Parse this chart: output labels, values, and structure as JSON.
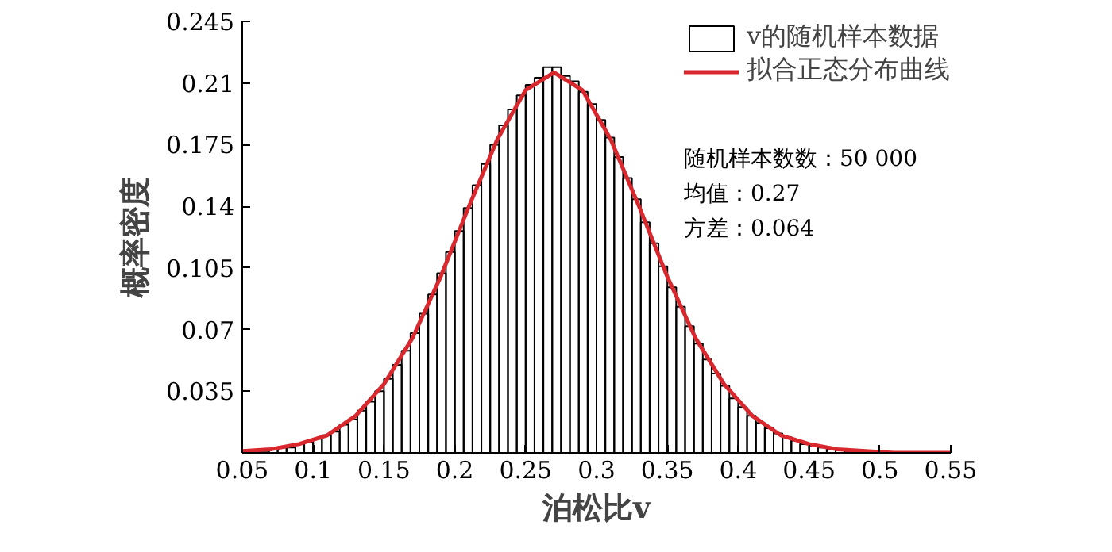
{
  "chart_data": {
    "type": "histogram",
    "xlabel": "泊松比v",
    "ylabel": "概率密度",
    "series": [
      {
        "name": "v的随机样本数据",
        "color": "#000000",
        "bins": [
          0.05,
          0.05625,
          0.0625,
          0.06875,
          0.075,
          0.08125,
          0.0875,
          0.09375,
          0.1,
          0.10625,
          0.1125,
          0.11875,
          0.125,
          0.13125,
          0.1375,
          0.14375,
          0.15,
          0.15625,
          0.1625,
          0.16875,
          0.175,
          0.18125,
          0.1875,
          0.19375,
          0.2,
          0.20625,
          0.2125,
          0.21875,
          0.225,
          0.23125,
          0.2375,
          0.24375,
          0.25,
          0.25625,
          0.2625,
          0.26875,
          0.275,
          0.28125,
          0.2875,
          0.29375,
          0.3,
          0.30625,
          0.3125,
          0.31875,
          0.325,
          0.33125,
          0.3375,
          0.34375,
          0.35,
          0.35625,
          0.3625,
          0.36875,
          0.375,
          0.38125,
          0.3875,
          0.39375,
          0.4,
          0.40625,
          0.4125,
          0.41875,
          0.425,
          0.43125,
          0.4375,
          0.44375,
          0.45,
          0.45625,
          0.4625,
          0.46875,
          0.475,
          0.48125,
          0.4875,
          0.49375,
          0.5,
          0.50625,
          0.5125,
          0.51875,
          0.525,
          0.53125,
          0.5375,
          0.54375,
          0.55
        ],
        "values": [
          0.001,
          0.001,
          0.001,
          0.002,
          0.003,
          0.003,
          0.005,
          0.006,
          0.008,
          0.01,
          0.012,
          0.016,
          0.019,
          0.024,
          0.029,
          0.035,
          0.042,
          0.05,
          0.058,
          0.068,
          0.079,
          0.09,
          0.102,
          0.114,
          0.126,
          0.139,
          0.152,
          0.164,
          0.175,
          0.186,
          0.195,
          0.203,
          0.209,
          0.213,
          0.219,
          0.219,
          0.214,
          0.211,
          0.205,
          0.198,
          0.189,
          0.179,
          0.168,
          0.156,
          0.144,
          0.131,
          0.119,
          0.106,
          0.094,
          0.083,
          0.072,
          0.062,
          0.053,
          0.045,
          0.038,
          0.031,
          0.026,
          0.021,
          0.017,
          0.014,
          0.011,
          0.009,
          0.007,
          0.005,
          0.004,
          0.003,
          0.002,
          0.002,
          0.001,
          0.001,
          0.001,
          0.0,
          0.0,
          0.0,
          0.0,
          0.0,
          0.0,
          0.0,
          0.0,
          0.0
        ]
      },
      {
        "name": "拟合正态分布曲线",
        "type": "line",
        "color": "#d9272e",
        "x": [
          0.05,
          0.07,
          0.09,
          0.11,
          0.13,
          0.15,
          0.17,
          0.19,
          0.21,
          0.23,
          0.25,
          0.27,
          0.29,
          0.31,
          0.33,
          0.35,
          0.37,
          0.39,
          0.41,
          0.43,
          0.45,
          0.47,
          0.49,
          0.51,
          0.53,
          0.55
        ],
        "values": [
          0.001,
          0.002,
          0.005,
          0.01,
          0.021,
          0.039,
          0.065,
          0.1,
          0.14,
          0.178,
          0.206,
          0.216,
          0.206,
          0.178,
          0.14,
          0.1,
          0.065,
          0.039,
          0.021,
          0.01,
          0.005,
          0.002,
          0.001,
          0.0,
          0.0,
          0.0
        ]
      }
    ],
    "xlim": [
      0.05,
      0.55
    ],
    "ylim": [
      0,
      0.245
    ],
    "xticks": [
      0.05,
      0.1,
      0.15,
      0.2,
      0.25,
      0.3,
      0.35,
      0.4,
      0.45,
      0.5,
      0.55
    ],
    "yticks": [
      0.035,
      0.07,
      0.105,
      0.14,
      0.175,
      0.21,
      0.245
    ],
    "annotations": [
      "随机样本数数：50 000",
      "均值：0.27",
      "方差：0.064"
    ],
    "legend": "top right",
    "grid": false
  }
}
